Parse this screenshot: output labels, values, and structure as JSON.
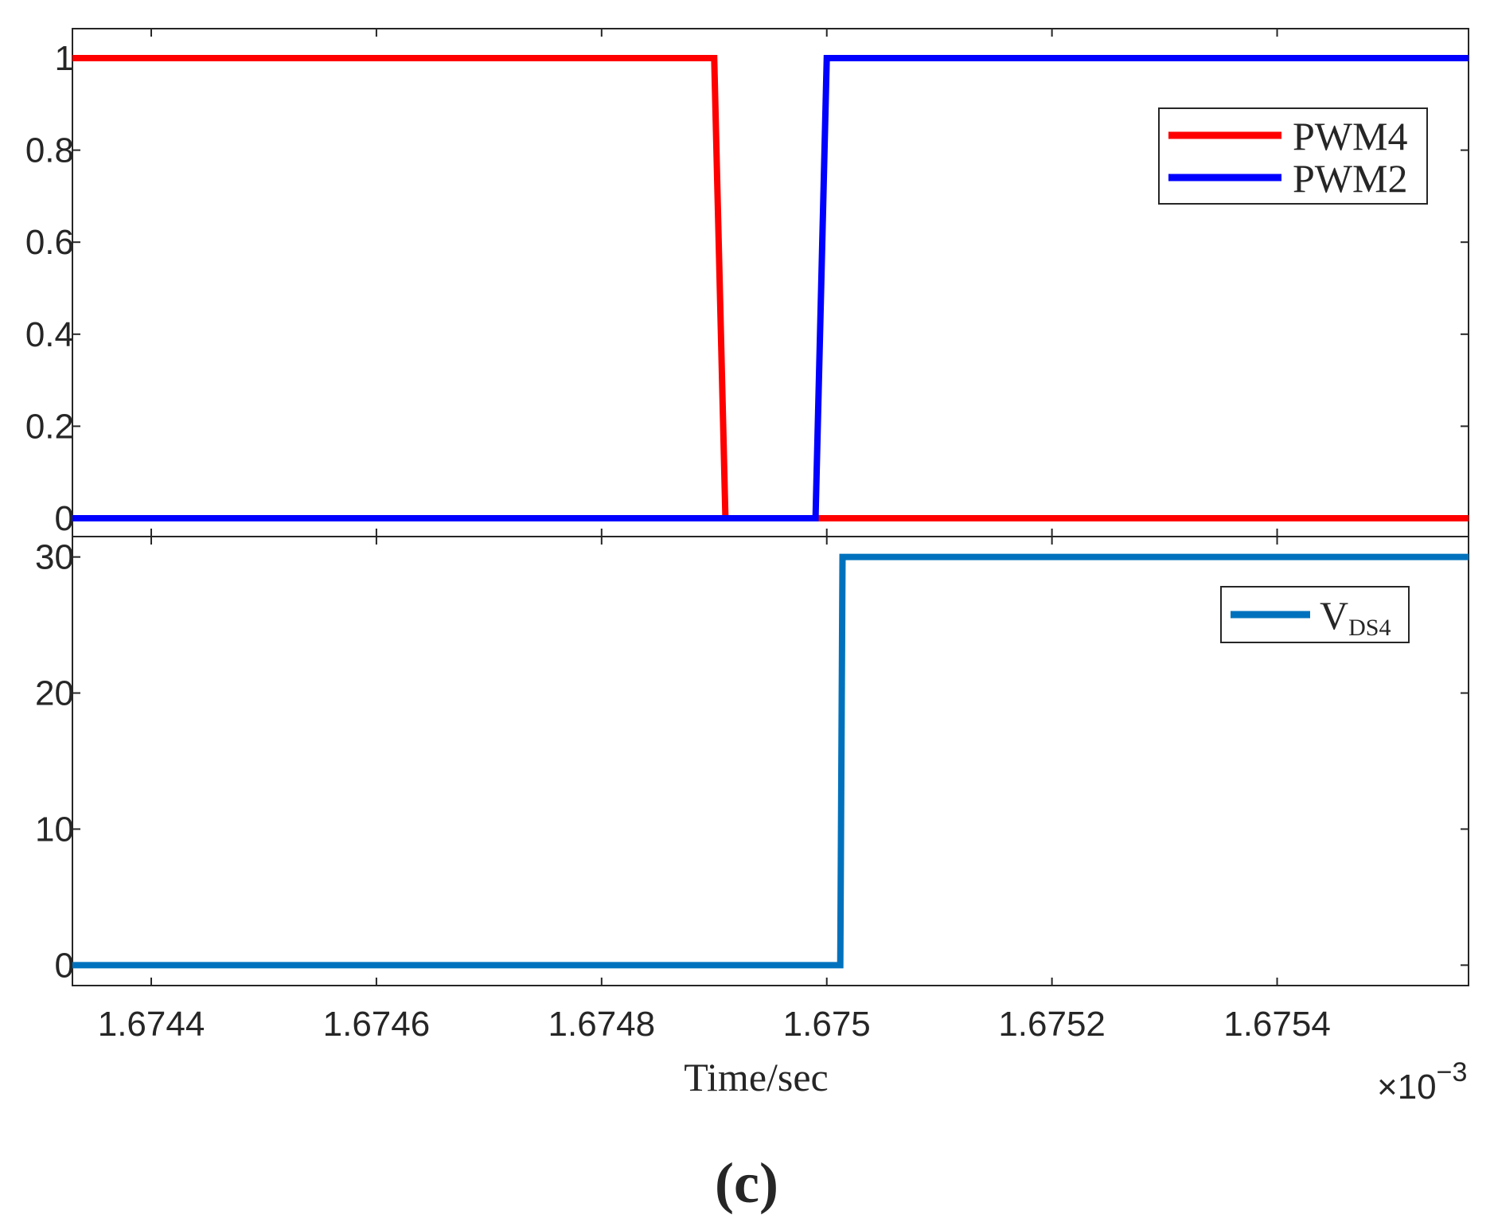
{
  "chart_data": [
    {
      "type": "line",
      "panel": "top",
      "xlim": [
        1.67433,
        1.67557
      ],
      "ylim": [
        0,
        1
      ],
      "x_scale_label": "×10",
      "x_scale_exponent": "−3",
      "yticks": [
        0,
        0.2,
        0.4,
        0.6,
        0.8,
        1
      ],
      "ytick_labels": [
        "0",
        "0.2",
        "0.4",
        "0.6",
        "0.8",
        "1"
      ],
      "xticks": [
        1.6744,
        1.6746,
        1.6748,
        1.675,
        1.6752,
        1.6754
      ],
      "grid": false,
      "legend_position": "top-right",
      "series": [
        {
          "name": "PWM4",
          "color": "#ff0000",
          "points": [
            [
              1.67433,
              1
            ],
            [
              1.6749,
              1
            ],
            [
              1.67491,
              0
            ],
            [
              1.67557,
              0
            ]
          ]
        },
        {
          "name": "PWM2",
          "color": "#0000ff",
          "points": [
            [
              1.67433,
              0
            ],
            [
              1.67499,
              0
            ],
            [
              1.675,
              1
            ],
            [
              1.67557,
              1
            ]
          ]
        }
      ]
    },
    {
      "type": "line",
      "panel": "bottom",
      "xlim": [
        1.67433,
        1.67557
      ],
      "ylim": [
        -1.5,
        31.5
      ],
      "yticks": [
        0,
        10,
        20,
        30
      ],
      "ytick_labels": [
        "0",
        "10",
        "20",
        "30"
      ],
      "xticks": [
        1.6744,
        1.6746,
        1.6748,
        1.675,
        1.6752,
        1.6754
      ],
      "xtick_labels": [
        "1.6744",
        "1.6746",
        "1.6748",
        "1.675",
        "1.6752",
        "1.6754"
      ],
      "xlabel": "Time/sec",
      "grid": false,
      "legend_position": "top-right",
      "series": [
        {
          "name": "V",
          "name_subscript": "DS4",
          "color": "#0072bd",
          "points": [
            [
              1.67433,
              0
            ],
            [
              1.675012,
              0
            ],
            [
              1.675014,
              30
            ],
            [
              1.67557,
              30
            ]
          ]
        }
      ]
    }
  ],
  "caption": "(c)"
}
